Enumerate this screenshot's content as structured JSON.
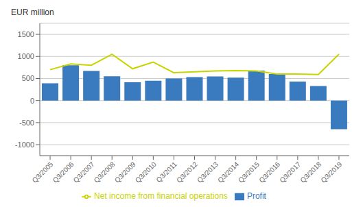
{
  "chart_data": {
    "type": "bar",
    "ylabel": "EUR million",
    "categories": [
      "Q3/2005",
      "Q3/2006",
      "Q3/2007",
      "Q3/2008",
      "Q3/2009",
      "Q3/2010",
      "Q3/2011",
      "Q3/2012",
      "Q3/2013",
      "Q3/2014",
      "Q3/2015",
      "Q3/2016",
      "Q3/2017",
      "Q3/2018",
      "Q3/2019"
    ],
    "series": [
      {
        "name": "Profit",
        "type": "bar",
        "color": "#3a7bbf",
        "values": [
          390,
          800,
          670,
          550,
          415,
          450,
          500,
          530,
          545,
          520,
          680,
          600,
          430,
          330,
          -650
        ]
      },
      {
        "name": "Net income from financial operations",
        "type": "line",
        "color": "#c8d400",
        "values": [
          700,
          830,
          800,
          1050,
          720,
          870,
          630,
          650,
          670,
          680,
          670,
          600,
          600,
          590,
          1050
        ]
      }
    ],
    "ylim": [
      -1250,
      1750
    ],
    "yticks": [
      -1000,
      -500,
      0,
      500,
      1000,
      1500
    ],
    "grid": true,
    "legend": "bottom"
  }
}
